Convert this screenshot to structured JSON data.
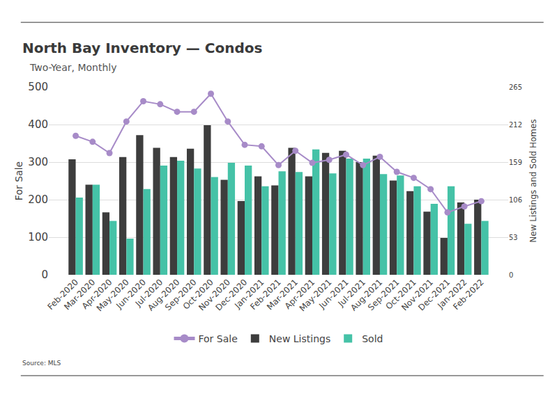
{
  "chart_data": {
    "type": "bar",
    "title": "North Bay Inventory — Condos",
    "subtitle": "Two-Year, Monthly",
    "source": "Source: MLS",
    "ylabel": "For Sale",
    "y2label": "New Listings and Sold Homes",
    "categories": [
      "Feb-2020",
      "Mar-2020",
      "Apr-2020",
      "May-2020",
      "Jun-2020",
      "Jul-2020",
      "Aug-2020",
      "Sep-2020",
      "Oct-2020",
      "Nov-2020",
      "Dec-2020",
      "Jan-2021",
      "Feb-2021",
      "Mar-2021",
      "Apr-2021",
      "May-2021",
      "Jun-2021",
      "Jul-2021",
      "Aug-2021",
      "Sep-2021",
      "Oct-2021",
      "Nov-2021",
      "Dec-2021",
      "Jan-2022",
      "Feb-2022"
    ],
    "series": [
      {
        "name": "For Sale",
        "type": "line",
        "marker": "circle",
        "color": "#a78bc8",
        "values": [
          370,
          354,
          324,
          408,
          462,
          454,
          434,
          434,
          482,
          408,
          346,
          342,
          292,
          330,
          298,
          306,
          320,
          292,
          314,
          274,
          258,
          228,
          166,
          182,
          196
        ]
      },
      {
        "name": "New Listings",
        "type": "bar",
        "axis": "y2",
        "color": "#3d3d3d",
        "values": [
          163,
          127,
          88,
          166,
          197,
          179,
          166,
          178,
          211,
          134,
          104,
          139,
          126,
          179,
          139,
          172,
          175,
          159,
          168,
          133,
          118,
          89,
          52,
          102,
          106
        ]
      },
      {
        "name": "Sold",
        "type": "bar",
        "axis": "y2",
        "color": "#45c2a7",
        "values": [
          109,
          127,
          76,
          51,
          121,
          154,
          161,
          150,
          138,
          158,
          154,
          125,
          146,
          145,
          177,
          143,
          164,
          164,
          142,
          140,
          125,
          100,
          125,
          72,
          76
        ]
      }
    ],
    "ylim": [
      0,
      500
    ],
    "yticks": [
      0,
      100,
      200,
      300,
      400,
      500
    ],
    "y2lim": [
      0,
      265
    ],
    "y2ticks": [
      0,
      53,
      106,
      159,
      212,
      265
    ],
    "grid": true,
    "legend": "bottom"
  }
}
